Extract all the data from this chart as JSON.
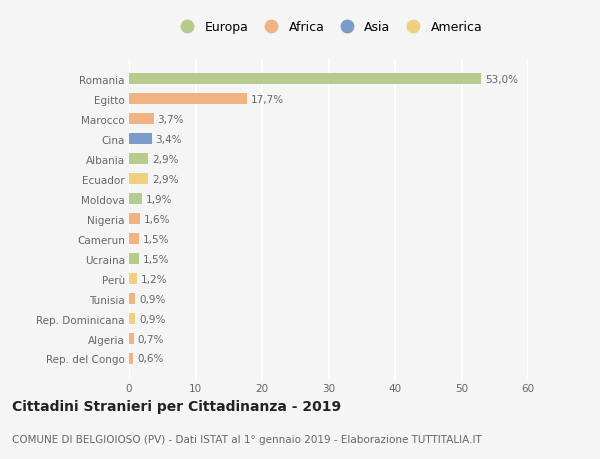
{
  "categories": [
    "Romania",
    "Egitto",
    "Marocco",
    "Cina",
    "Albania",
    "Ecuador",
    "Moldova",
    "Nigeria",
    "Camerun",
    "Ucraina",
    "Perù",
    "Tunisia",
    "Rep. Dominicana",
    "Algeria",
    "Rep. del Congo"
  ],
  "values": [
    53.0,
    17.7,
    3.7,
    3.4,
    2.9,
    2.9,
    1.9,
    1.6,
    1.5,
    1.5,
    1.2,
    0.9,
    0.9,
    0.7,
    0.6
  ],
  "labels": [
    "53,0%",
    "17,7%",
    "3,7%",
    "3,4%",
    "2,9%",
    "2,9%",
    "1,9%",
    "1,6%",
    "1,5%",
    "1,5%",
    "1,2%",
    "0,9%",
    "0,9%",
    "0,7%",
    "0,6%"
  ],
  "continents": [
    "Europa",
    "Africa",
    "Africa",
    "Asia",
    "Europa",
    "America",
    "Europa",
    "Africa",
    "Africa",
    "Europa",
    "America",
    "Africa",
    "America",
    "Africa",
    "Africa"
  ],
  "continent_colors": {
    "Europa": "#b5cc8e",
    "Africa": "#f0b482",
    "Asia": "#7b9cc8",
    "America": "#f0d080"
  },
  "legend_order": [
    "Europa",
    "Africa",
    "Asia",
    "America"
  ],
  "legend_colors": [
    "#b5cc8e",
    "#f0b482",
    "#7b9cc8",
    "#f0d080"
  ],
  "xlim": [
    0,
    60
  ],
  "xticks": [
    0,
    10,
    20,
    30,
    40,
    50,
    60
  ],
  "title": "Cittadini Stranieri per Cittadinanza - 2019",
  "subtitle": "COMUNE DI BELGIOIOSO (PV) - Dati ISTAT al 1° gennaio 2019 - Elaborazione TUTTITALIA.IT",
  "background_color": "#f5f5f5",
  "bar_height": 0.55,
  "grid_color": "#ffffff",
  "title_fontsize": 10,
  "subtitle_fontsize": 7.5,
  "tick_fontsize": 7.5,
  "label_fontsize": 7.5,
  "legend_fontsize": 9
}
